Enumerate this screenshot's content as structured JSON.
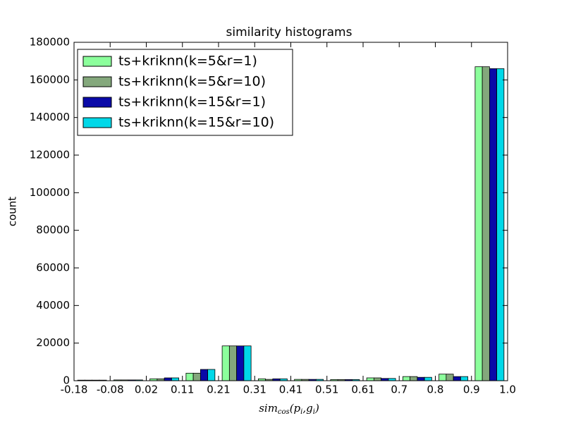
{
  "chart_data": {
    "type": "histogram",
    "title": "similarity histograms",
    "ylabel": "count",
    "xlabel": [
      "sim",
      "cos",
      "(p",
      "i",
      ",g",
      "i",
      ")"
    ],
    "bins": [
      -0.18,
      -0.0817,
      0.0167,
      0.115,
      0.2133,
      0.3117,
      0.41,
      0.5083,
      0.6067,
      0.705,
      0.8033,
      0.9017,
      1.0
    ],
    "series": [
      {
        "name": "ts+kriknn(k=5&r=1)",
        "color": "#8cff9c",
        "values": [
          300,
          400,
          1000,
          4000,
          18500,
          1000,
          700,
          600,
          1500,
          2200,
          3500,
          167000
        ]
      },
      {
        "name": "ts+kriknn(k=5&r=10)",
        "color": "#84a87c",
        "values": [
          300,
          400,
          1000,
          4000,
          18500,
          700,
          700,
          600,
          1500,
          2200,
          3500,
          167000
        ]
      },
      {
        "name": "ts+kriknn(k=15&r=1)",
        "color": "#0a0aa8",
        "values": [
          300,
          400,
          1500,
          6000,
          18500,
          1000,
          700,
          600,
          1200,
          1800,
          2200,
          166000
        ]
      },
      {
        "name": "ts+kriknn(k=15&r=10)",
        "color": "#00d8e8",
        "values": [
          300,
          400,
          1500,
          6000,
          18500,
          1000,
          700,
          600,
          1200,
          1800,
          2200,
          166000
        ]
      }
    ],
    "xlim": [
      -0.18,
      1.0
    ],
    "xticks": [
      -0.18,
      {
        "value": -0.0817,
        "label": "-0.08"
      },
      {
        "value": 0.0167,
        "label": "0.02"
      },
      {
        "value": 0.115,
        "label": "0.11"
      },
      {
        "value": 0.2133,
        "label": "0.21"
      },
      {
        "value": 0.3117,
        "label": "0.31"
      },
      0.41,
      {
        "value": 0.5083,
        "label": "0.51"
      },
      {
        "value": 0.6067,
        "label": "0.61"
      },
      {
        "value": 0.705,
        "label": "0.7"
      },
      {
        "value": 0.8033,
        "label": "0.8"
      },
      {
        "value": 0.9017,
        "label": "0.9"
      },
      {
        "value": 1.0,
        "label": "1.0"
      }
    ],
    "ylim": [
      0,
      180000
    ],
    "yticks": [
      0,
      20000,
      40000,
      60000,
      80000,
      100000,
      120000,
      140000,
      160000,
      180000
    ],
    "grid": false,
    "legend": "upper left"
  }
}
